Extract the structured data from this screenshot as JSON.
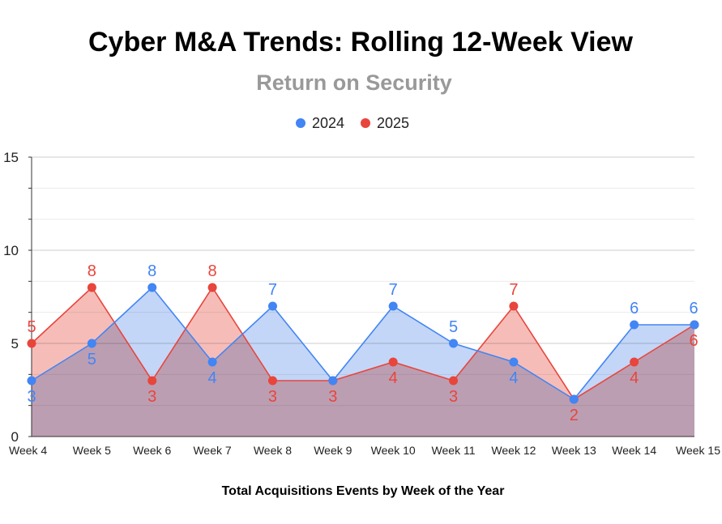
{
  "chart_data": {
    "type": "area",
    "title": "Cyber M&A Trends: Rolling 12-Week View",
    "subtitle": "Return on Security",
    "xlabel": "Total Acquisitions Events by Week of the Year",
    "ylabel": "",
    "ylim": [
      0,
      15
    ],
    "yticks": [
      "0",
      "5",
      "10",
      "15"
    ],
    "legend_position": "top",
    "grid": true,
    "categories": [
      "Week 4",
      "Week 5",
      "Week 6",
      "Week 7",
      "Week 8",
      "Week 9",
      "Week 10",
      "Week 11",
      "Week 12",
      "Week 13",
      "Week 14",
      "Week 15"
    ],
    "series": [
      {
        "name": "2024",
        "color": "#4285f4",
        "fill": "#c3d6f7",
        "values": [
          3,
          5,
          8,
          4,
          7,
          3,
          7,
          5,
          4,
          2,
          6,
          6
        ],
        "labels": [
          "3",
          "5",
          "8",
          "4",
          "7",
          "",
          "7",
          "5",
          "4",
          "",
          "6",
          "6"
        ]
      },
      {
        "name": "2025",
        "color": "#e8453c",
        "fill": "#f6bdb8",
        "values": [
          5,
          8,
          3,
          8,
          3,
          3,
          4,
          3,
          7,
          2,
          4,
          6
        ],
        "labels": [
          "5",
          "8",
          "3",
          "8",
          "3",
          "3",
          "4",
          "3",
          "7",
          "2",
          "4",
          "6"
        ]
      }
    ],
    "overlap_fill": "#ceaabc"
  }
}
